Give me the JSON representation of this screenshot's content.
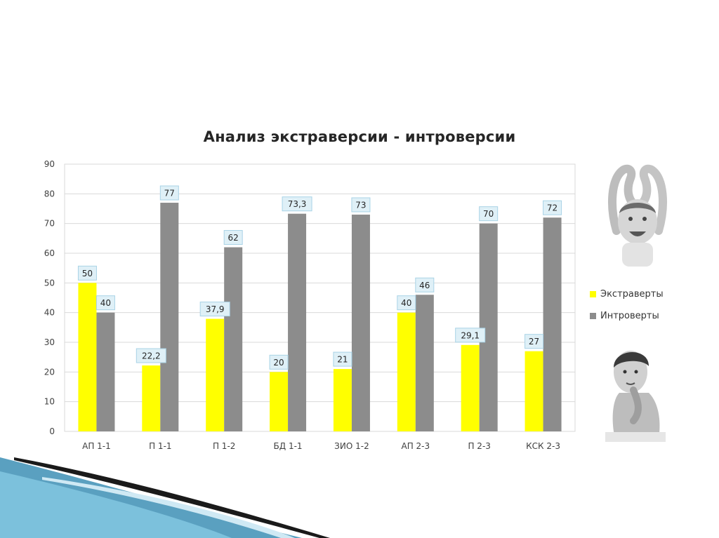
{
  "colors": {
    "extraverts": "#ffff00",
    "introverts": "#8c8c8c",
    "label_fill": "#dff0f7",
    "label_stroke": "#a9d3e6",
    "accent_teal": "#3d8fb5",
    "accent_dark": "#1a1a1a"
  },
  "illustrations": {
    "top": "cheerful-child-arms-raised-photo",
    "bottom": "thoughtful-child-hand-on-chin-photo"
  },
  "chart_data": {
    "type": "bar",
    "title": "Анализ экстраверсии - интроверсии",
    "xlabel": "",
    "ylabel": "",
    "categories": [
      "АП 1-1",
      "П 1-1",
      "П 1-2",
      "БД 1-1",
      "ЗИО 1-2",
      "АП 2-3",
      "П 2-3",
      "КСК 2-3"
    ],
    "series": [
      {
        "name": "Экстраверты",
        "color": "#ffff00",
        "values": [
          50,
          22.2,
          37.9,
          20,
          21,
          40,
          29.1,
          27
        ],
        "labels": [
          "50",
          "22,2",
          "37,9",
          "20",
          "21",
          "40",
          "29,1",
          "27"
        ]
      },
      {
        "name": "Интроверты",
        "color": "#8c8c8c",
        "values": [
          40,
          77,
          62,
          73.3,
          73,
          46,
          70,
          72
        ],
        "labels": [
          "40",
          "77",
          "62",
          "73,3",
          "73",
          "46",
          "70",
          "72"
        ]
      }
    ],
    "ylim": [
      0,
      90
    ],
    "yticks": [
      "0",
      "10",
      "20",
      "30",
      "40",
      "50",
      "60",
      "70",
      "80",
      "90"
    ],
    "grid": true,
    "legend_position": "right"
  }
}
